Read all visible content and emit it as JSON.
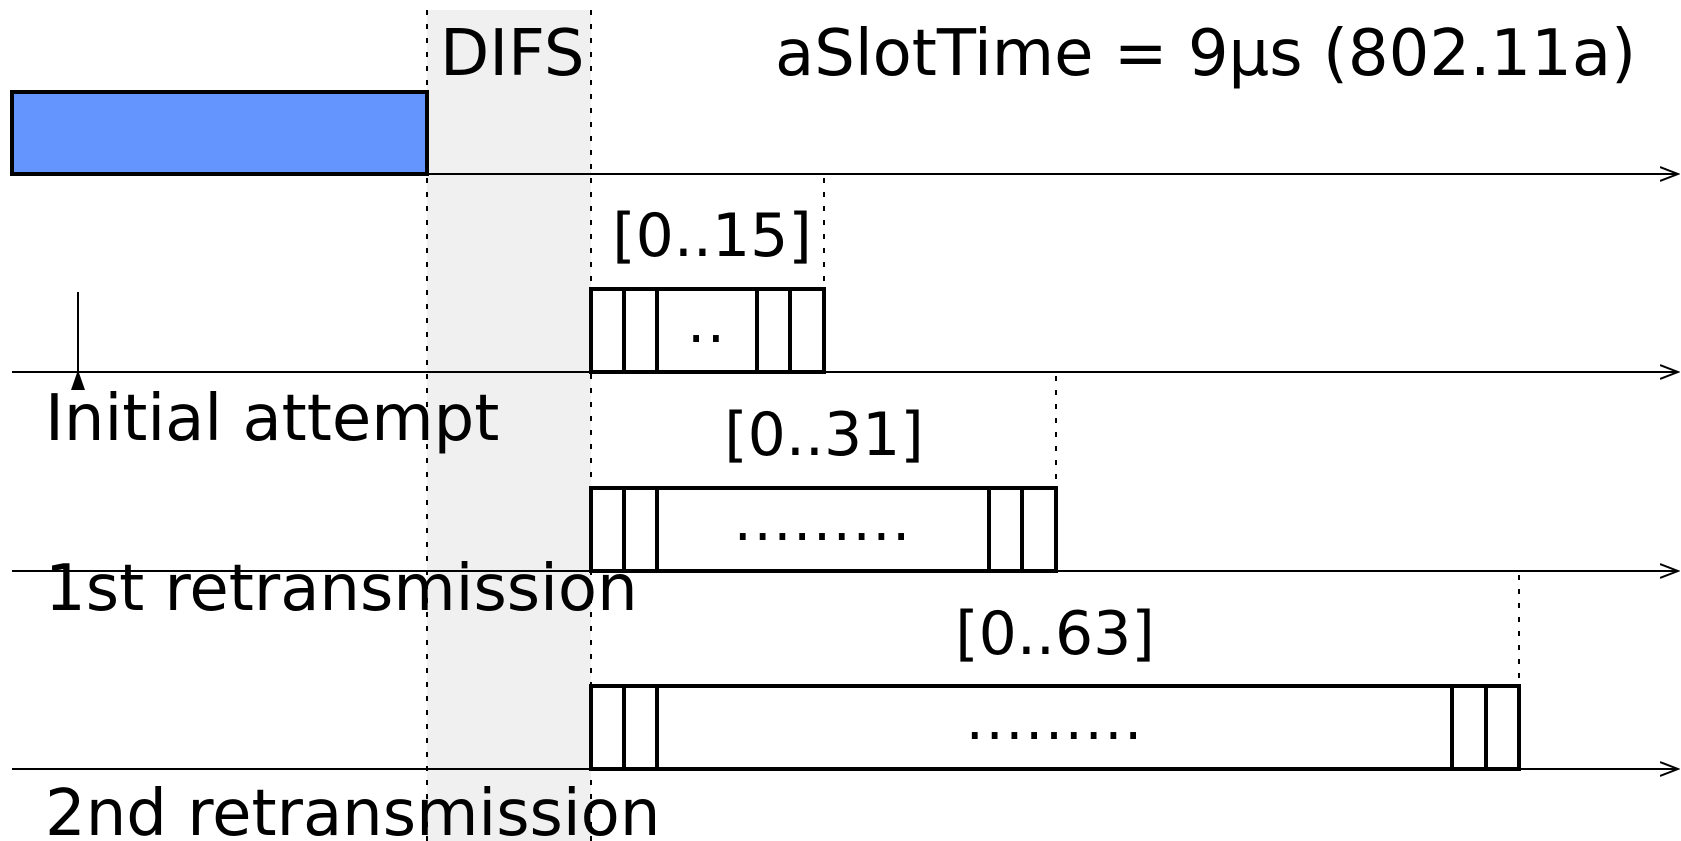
{
  "header": {
    "difs_label": "DIFS",
    "slot_time_label": "aSlotTime = 9µs (802.11a)"
  },
  "rows": [
    {
      "name": "Initial attempt",
      "window": "[0..15]",
      "dots": ".."
    },
    {
      "name": "1st retransmission",
      "window": "[0..31]",
      "dots": "........."
    },
    {
      "name": "2nd retransmission",
      "window": "[0..63]",
      "dots": "........."
    }
  ],
  "colors": {
    "busy_medium": "#6495ff",
    "difs_shade": "#f0f0f0",
    "stroke": "#000000"
  }
}
